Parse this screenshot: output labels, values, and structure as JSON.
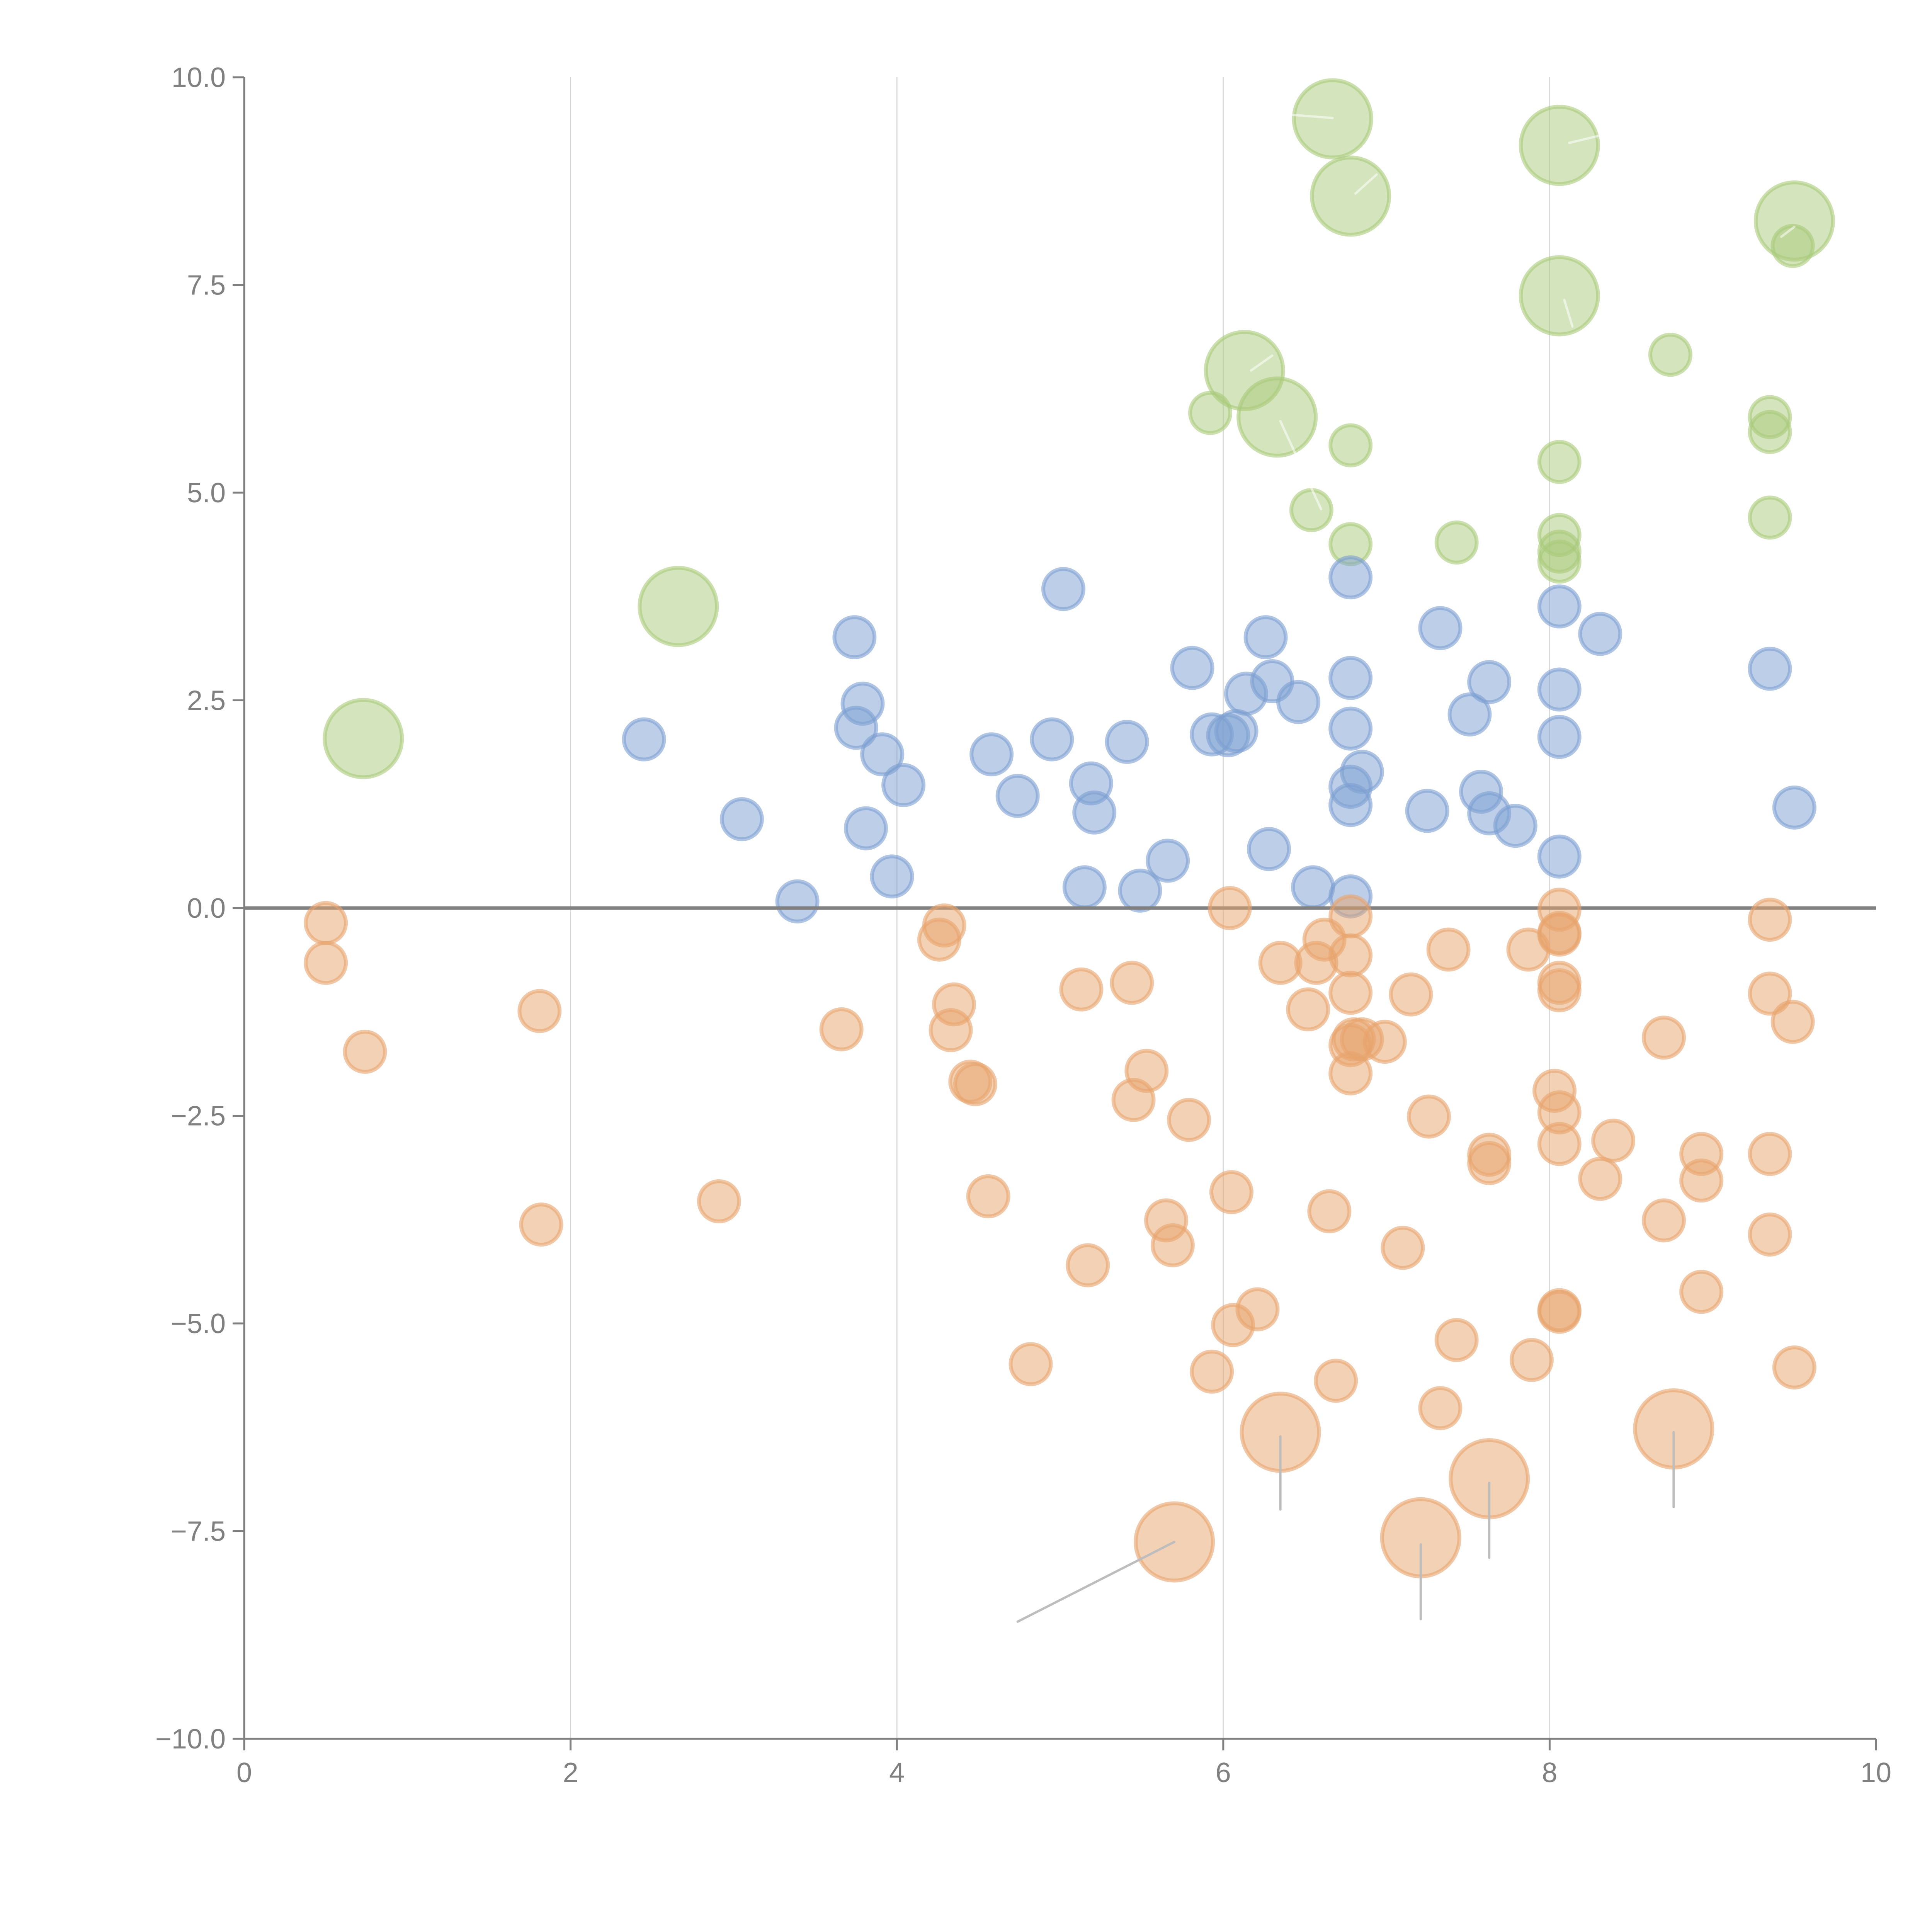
{
  "chart_data": {
    "type": "scatter",
    "title": "",
    "xlabel": "",
    "ylabel": "",
    "xlim": [
      0,
      10
    ],
    "ylim": [
      -10,
      10
    ],
    "x_ticks": [
      "0",
      "2",
      "4",
      "6",
      "8",
      "10"
    ],
    "x_tick_values": [
      0,
      2,
      4,
      6,
      8,
      10
    ],
    "y_ticks": [
      "10.0",
      "7.5",
      "5.0",
      "2.5",
      "0.0",
      "−2.5",
      "−5.0",
      "−7.5",
      "−10.0"
    ],
    "y_tick_values": [
      10,
      7.5,
      5,
      2.5,
      0,
      -2.5,
      -5,
      -7.5,
      -10
    ],
    "grid": "vertical",
    "reference_line_y": 0,
    "legend": "none",
    "colors": {
      "green": "#a9c97a",
      "blue": "#7b9fd1",
      "orange": "#e8a46c",
      "axis": "#808080"
    },
    "size_scale": {
      "small": 1,
      "large": 2
    },
    "series": [
      {
        "name": "green",
        "color": "#a9c97a",
        "points": [
          {
            "x": 0.73,
            "y": 2.04,
            "size": "large"
          },
          {
            "x": 2.66,
            "y": 3.63,
            "size": "large"
          },
          {
            "x": 6.67,
            "y": 9.5,
            "size": "large"
          },
          {
            "x": 8.06,
            "y": 9.18,
            "size": "large"
          },
          {
            "x": 6.78,
            "y": 8.57,
            "size": "large"
          },
          {
            "x": 9.5,
            "y": 8.27,
            "size": "large"
          },
          {
            "x": 9.49,
            "y": 7.97,
            "size": "small"
          },
          {
            "x": 8.06,
            "y": 7.37,
            "size": "large"
          },
          {
            "x": 8.74,
            "y": 6.66,
            "size": "small"
          },
          {
            "x": 6.13,
            "y": 6.47,
            "size": "large"
          },
          {
            "x": 6.33,
            "y": 5.91,
            "size": "large"
          },
          {
            "x": 5.92,
            "y": 5.96,
            "size": "small"
          },
          {
            "x": 6.78,
            "y": 5.57,
            "size": "small"
          },
          {
            "x": 8.06,
            "y": 5.37,
            "size": "small"
          },
          {
            "x": 9.35,
            "y": 5.91,
            "size": "small"
          },
          {
            "x": 9.35,
            "y": 5.73,
            "size": "small"
          },
          {
            "x": 9.35,
            "y": 4.7,
            "size": "small"
          },
          {
            "x": 6.54,
            "y": 4.79,
            "size": "small"
          },
          {
            "x": 6.78,
            "y": 4.38,
            "size": "small"
          },
          {
            "x": 7.43,
            "y": 4.4,
            "size": "small"
          },
          {
            "x": 8.06,
            "y": 4.49,
            "size": "small"
          },
          {
            "x": 8.06,
            "y": 4.29,
            "size": "small"
          },
          {
            "x": 8.06,
            "y": 4.17,
            "size": "small"
          }
        ]
      },
      {
        "name": "blue",
        "color": "#7b9fd1",
        "points": [
          {
            "x": 2.45,
            "y": 2.03,
            "size": "small"
          },
          {
            "x": 3.05,
            "y": 1.07,
            "size": "small"
          },
          {
            "x": 3.39,
            "y": 0.08,
            "size": "small"
          },
          {
            "x": 3.74,
            "y": 3.26,
            "size": "small"
          },
          {
            "x": 3.79,
            "y": 2.46,
            "size": "small"
          },
          {
            "x": 3.75,
            "y": 2.17,
            "size": "small"
          },
          {
            "x": 3.91,
            "y": 1.85,
            "size": "small"
          },
          {
            "x": 3.81,
            "y": 0.96,
            "size": "small"
          },
          {
            "x": 3.97,
            "y": 0.38,
            "size": "small"
          },
          {
            "x": 4.04,
            "y": 1.48,
            "size": "small"
          },
          {
            "x": 4.58,
            "y": 1.85,
            "size": "small"
          },
          {
            "x": 4.74,
            "y": 1.35,
            "size": "small"
          },
          {
            "x": 5.02,
            "y": 3.84,
            "size": "small"
          },
          {
            "x": 4.95,
            "y": 2.03,
            "size": "small"
          },
          {
            "x": 5.19,
            "y": 1.5,
            "size": "small"
          },
          {
            "x": 5.21,
            "y": 1.15,
            "size": "small"
          },
          {
            "x": 5.15,
            "y": 0.25,
            "size": "small"
          },
          {
            "x": 5.41,
            "y": 2.0,
            "size": "small"
          },
          {
            "x": 5.49,
            "y": 0.21,
            "size": "small"
          },
          {
            "x": 5.66,
            "y": 0.57,
            "size": "small"
          },
          {
            "x": 5.81,
            "y": 2.89,
            "size": "small"
          },
          {
            "x": 5.93,
            "y": 2.09,
            "size": "small"
          },
          {
            "x": 6.03,
            "y": 2.08,
            "size": "small"
          },
          {
            "x": 6.08,
            "y": 2.13,
            "size": "small"
          },
          {
            "x": 6.14,
            "y": 2.58,
            "size": "small"
          },
          {
            "x": 6.26,
            "y": 3.26,
            "size": "small"
          },
          {
            "x": 6.3,
            "y": 2.73,
            "size": "small"
          },
          {
            "x": 6.28,
            "y": 0.71,
            "size": "small"
          },
          {
            "x": 6.46,
            "y": 2.48,
            "size": "small"
          },
          {
            "x": 6.55,
            "y": 0.25,
            "size": "small"
          },
          {
            "x": 6.78,
            "y": 3.98,
            "size": "small"
          },
          {
            "x": 6.78,
            "y": 2.77,
            "size": "small"
          },
          {
            "x": 6.78,
            "y": 2.16,
            "size": "small"
          },
          {
            "x": 6.85,
            "y": 1.64,
            "size": "small"
          },
          {
            "x": 6.78,
            "y": 1.46,
            "size": "small"
          },
          {
            "x": 6.78,
            "y": 1.24,
            "size": "small"
          },
          {
            "x": 6.78,
            "y": 0.14,
            "size": "small"
          },
          {
            "x": 7.25,
            "y": 1.17,
            "size": "small"
          },
          {
            "x": 7.33,
            "y": 3.37,
            "size": "small"
          },
          {
            "x": 7.51,
            "y": 2.33,
            "size": "small"
          },
          {
            "x": 7.58,
            "y": 1.4,
            "size": "small"
          },
          {
            "x": 7.63,
            "y": 2.72,
            "size": "small"
          },
          {
            "x": 7.63,
            "y": 1.14,
            "size": "small"
          },
          {
            "x": 7.79,
            "y": 0.99,
            "size": "small"
          },
          {
            "x": 8.06,
            "y": 3.63,
            "size": "small"
          },
          {
            "x": 8.06,
            "y": 2.63,
            "size": "small"
          },
          {
            "x": 8.06,
            "y": 2.06,
            "size": "small"
          },
          {
            "x": 8.06,
            "y": 0.62,
            "size": "small"
          },
          {
            "x": 8.31,
            "y": 3.3,
            "size": "small"
          },
          {
            "x": 9.35,
            "y": 2.88,
            "size": "small"
          },
          {
            "x": 9.5,
            "y": 1.21,
            "size": "small"
          }
        ]
      },
      {
        "name": "orange",
        "color": "#e8a46c",
        "points": [
          {
            "x": 0.5,
            "y": -0.18,
            "size": "small"
          },
          {
            "x": 0.5,
            "y": -0.66,
            "size": "small"
          },
          {
            "x": 0.74,
            "y": -1.73,
            "size": "small"
          },
          {
            "x": 1.81,
            "y": -1.24,
            "size": "small"
          },
          {
            "x": 1.82,
            "y": -3.81,
            "size": "small"
          },
          {
            "x": 2.91,
            "y": -3.53,
            "size": "small"
          },
          {
            "x": 3.66,
            "y": -1.46,
            "size": "small"
          },
          {
            "x": 4.29,
            "y": -0.21,
            "size": "small"
          },
          {
            "x": 4.26,
            "y": -0.38,
            "size": "small"
          },
          {
            "x": 4.35,
            "y": -1.16,
            "size": "small"
          },
          {
            "x": 4.33,
            "y": -1.47,
            "size": "small"
          },
          {
            "x": 4.45,
            "y": -2.09,
            "size": "small"
          },
          {
            "x": 4.48,
            "y": -2.12,
            "size": "small"
          },
          {
            "x": 4.56,
            "y": -3.47,
            "size": "small"
          },
          {
            "x": 4.82,
            "y": -5.49,
            "size": "small"
          },
          {
            "x": 5.13,
            "y": -0.98,
            "size": "small"
          },
          {
            "x": 5.17,
            "y": -4.3,
            "size": "small"
          },
          {
            "x": 5.44,
            "y": -0.9,
            "size": "small"
          },
          {
            "x": 5.45,
            "y": -2.31,
            "size": "small"
          },
          {
            "x": 5.53,
            "y": -1.96,
            "size": "small"
          },
          {
            "x": 5.65,
            "y": -3.76,
            "size": "small"
          },
          {
            "x": 5.69,
            "y": -4.06,
            "size": "small"
          },
          {
            "x": 5.79,
            "y": -2.55,
            "size": "small"
          },
          {
            "x": 5.93,
            "y": -5.58,
            "size": "small"
          },
          {
            "x": 6.04,
            "y": 0.0,
            "size": "small"
          },
          {
            "x": 6.05,
            "y": -3.42,
            "size": "small"
          },
          {
            "x": 6.06,
            "y": -5.02,
            "size": "small"
          },
          {
            "x": 6.21,
            "y": -4.83,
            "size": "small"
          },
          {
            "x": 6.35,
            "y": -0.66,
            "size": "small"
          },
          {
            "x": 6.52,
            "y": -1.22,
            "size": "small"
          },
          {
            "x": 6.57,
            "y": -0.66,
            "size": "small"
          },
          {
            "x": 6.62,
            "y": -0.38,
            "size": "small"
          },
          {
            "x": 6.65,
            "y": -3.65,
            "size": "small"
          },
          {
            "x": 6.69,
            "y": -5.69,
            "size": "small"
          },
          {
            "x": 6.78,
            "y": -0.1,
            "size": "small"
          },
          {
            "x": 6.78,
            "y": -0.57,
            "size": "small"
          },
          {
            "x": 6.78,
            "y": -1.02,
            "size": "small"
          },
          {
            "x": 6.8,
            "y": -1.58,
            "size": "small"
          },
          {
            "x": 6.78,
            "y": -1.65,
            "size": "small"
          },
          {
            "x": 6.85,
            "y": -1.58,
            "size": "small"
          },
          {
            "x": 6.78,
            "y": -1.99,
            "size": "small"
          },
          {
            "x": 6.99,
            "y": -1.61,
            "size": "small"
          },
          {
            "x": 7.1,
            "y": -4.09,
            "size": "small"
          },
          {
            "x": 7.15,
            "y": -1.04,
            "size": "small"
          },
          {
            "x": 7.26,
            "y": -2.51,
            "size": "small"
          },
          {
            "x": 7.33,
            "y": -6.02,
            "size": "small"
          },
          {
            "x": 7.38,
            "y": -0.5,
            "size": "small"
          },
          {
            "x": 7.43,
            "y": -5.2,
            "size": "small"
          },
          {
            "x": 7.63,
            "y": -2.97,
            "size": "small"
          },
          {
            "x": 7.63,
            "y": -3.07,
            "size": "small"
          },
          {
            "x": 7.87,
            "y": -0.5,
            "size": "small"
          },
          {
            "x": 7.89,
            "y": -5.44,
            "size": "small"
          },
          {
            "x": 8.03,
            "y": -2.2,
            "size": "small"
          },
          {
            "x": 8.06,
            "y": -0.02,
            "size": "small"
          },
          {
            "x": 8.06,
            "y": -0.3,
            "size": "small"
          },
          {
            "x": 8.06,
            "y": -0.32,
            "size": "small"
          },
          {
            "x": 8.06,
            "y": -0.9,
            "size": "small"
          },
          {
            "x": 8.06,
            "y": -0.99,
            "size": "small"
          },
          {
            "x": 8.06,
            "y": -2.46,
            "size": "small"
          },
          {
            "x": 8.06,
            "y": -2.84,
            "size": "small"
          },
          {
            "x": 8.06,
            "y": -4.84,
            "size": "small"
          },
          {
            "x": 8.06,
            "y": -4.86,
            "size": "small"
          },
          {
            "x": 8.31,
            "y": -3.26,
            "size": "small"
          },
          {
            "x": 8.39,
            "y": -2.8,
            "size": "small"
          },
          {
            "x": 8.7,
            "y": -1.56,
            "size": "small"
          },
          {
            "x": 8.7,
            "y": -3.76,
            "size": "small"
          },
          {
            "x": 8.93,
            "y": -2.96,
            "size": "small"
          },
          {
            "x": 8.93,
            "y": -3.28,
            "size": "small"
          },
          {
            "x": 8.93,
            "y": -4.62,
            "size": "small"
          },
          {
            "x": 9.35,
            "y": -0.14,
            "size": "small"
          },
          {
            "x": 9.35,
            "y": -1.03,
            "size": "small"
          },
          {
            "x": 9.35,
            "y": -2.96,
            "size": "small"
          },
          {
            "x": 9.35,
            "y": -3.93,
            "size": "small"
          },
          {
            "x": 9.49,
            "y": -1.37,
            "size": "small"
          },
          {
            "x": 9.5,
            "y": -5.53,
            "size": "small"
          },
          {
            "x": 5.7,
            "y": -7.63,
            "size": "large"
          },
          {
            "x": 6.35,
            "y": -6.31,
            "size": "large"
          },
          {
            "x": 7.21,
            "y": -7.58,
            "size": "large"
          },
          {
            "x": 7.63,
            "y": -6.87,
            "size": "large"
          },
          {
            "x": 8.76,
            "y": -6.27,
            "size": "large"
          }
        ]
      }
    ],
    "leader_lines": [
      {
        "from": [
          5.7,
          -7.63
        ],
        "to": [
          4.74,
          -8.59
        ],
        "color": "gray"
      },
      {
        "from": [
          6.35,
          -6.36
        ],
        "to": [
          6.35,
          -7.24
        ],
        "color": "gray"
      },
      {
        "from": [
          7.21,
          -7.66
        ],
        "to": [
          7.21,
          -8.56
        ],
        "color": "gray"
      },
      {
        "from": [
          7.63,
          -6.92
        ],
        "to": [
          7.63,
          -7.82
        ],
        "color": "gray"
      },
      {
        "from": [
          8.76,
          -6.31
        ],
        "to": [
          8.76,
          -7.21
        ],
        "color": "gray"
      },
      {
        "from": [
          6.67,
          9.51
        ],
        "to": [
          6.27,
          9.57
        ],
        "color": "white"
      },
      {
        "from": [
          8.12,
          9.21
        ],
        "to": [
          8.31,
          9.3
        ],
        "color": "white"
      },
      {
        "from": [
          6.81,
          8.6
        ],
        "to": [
          6.94,
          8.83
        ],
        "color": "white"
      },
      {
        "from": [
          9.42,
          8.08
        ],
        "to": [
          9.5,
          8.2
        ],
        "color": "white"
      },
      {
        "from": [
          8.09,
          7.32
        ],
        "to": [
          8.14,
          7.0
        ],
        "color": "white"
      },
      {
        "from": [
          6.17,
          6.47
        ],
        "to": [
          6.3,
          6.65
        ],
        "color": "white"
      },
      {
        "from": [
          6.35,
          5.86
        ],
        "to": [
          6.6,
          4.8
        ],
        "color": "white"
      }
    ]
  }
}
